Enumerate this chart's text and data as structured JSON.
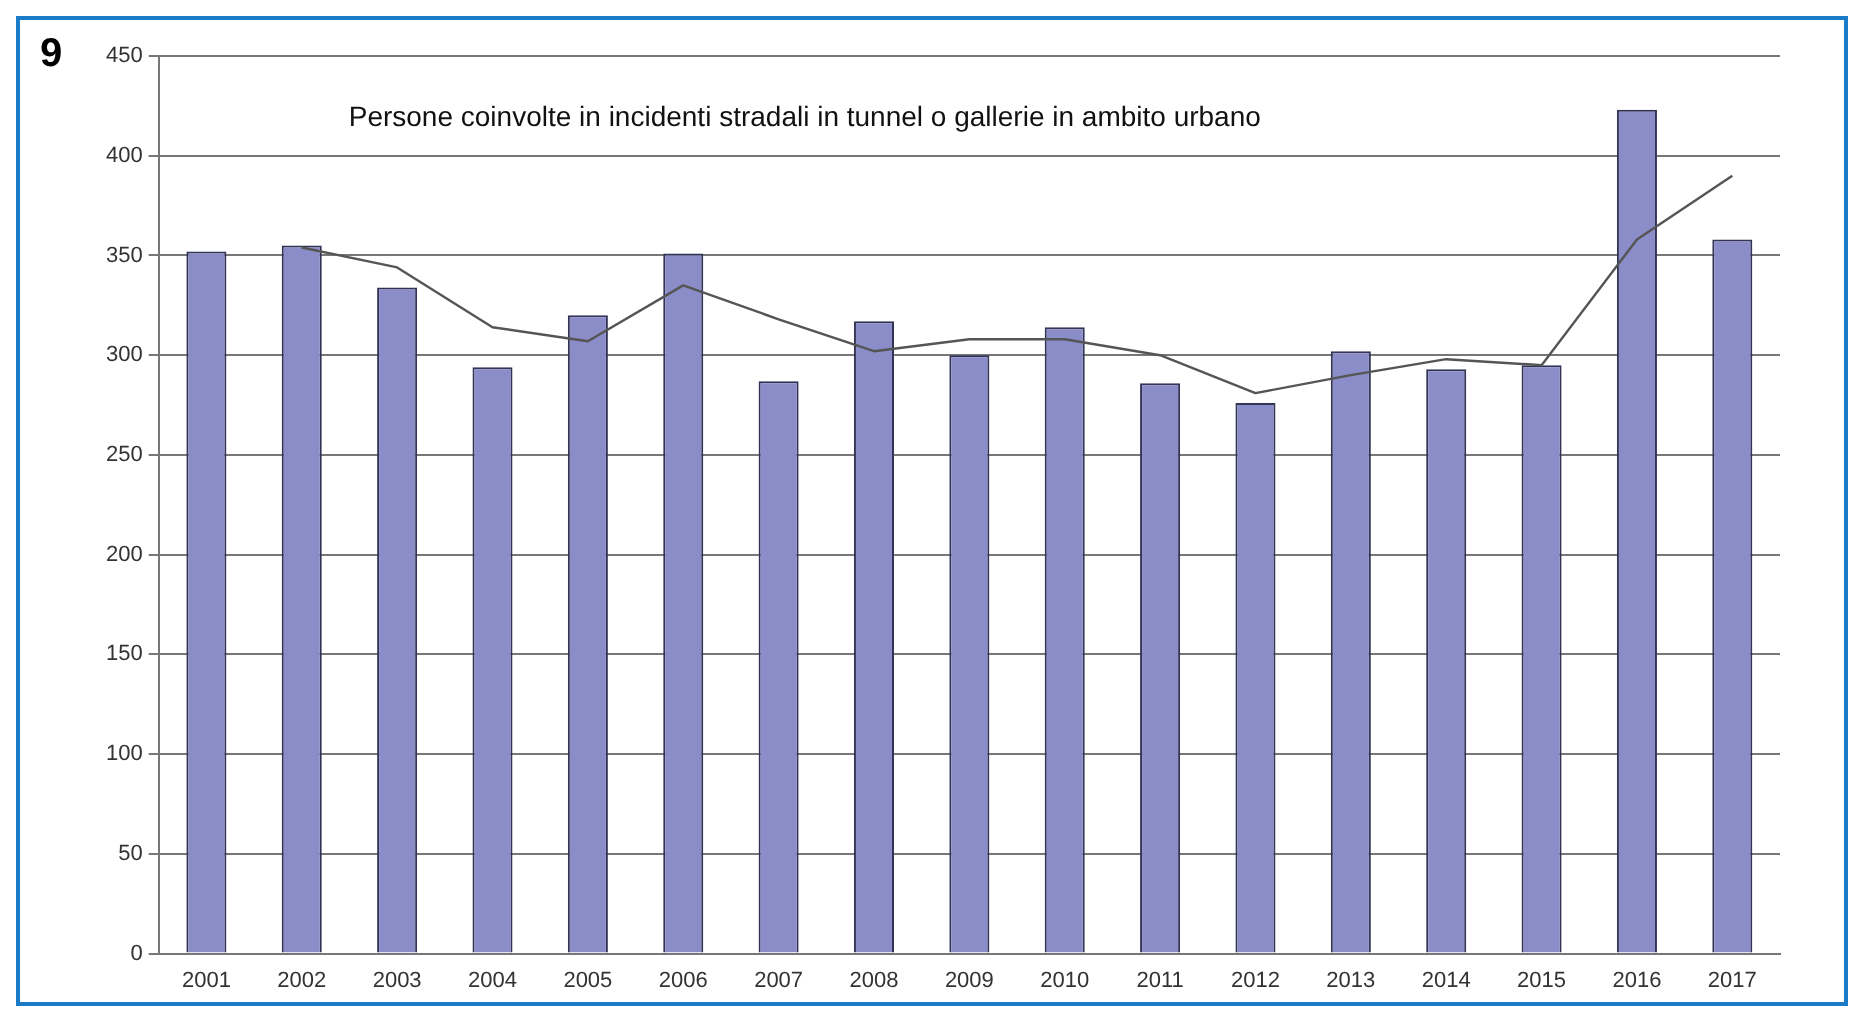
{
  "chart_data": {
    "type": "bar",
    "title": "Persone coinvolte in incidenti stradali in tunnel o gallerie in ambito urbano",
    "annotations": [
      "9"
    ],
    "categories": [
      "2001",
      "2002",
      "2003",
      "2004",
      "2005",
      "2006",
      "2007",
      "2008",
      "2009",
      "2010",
      "2011",
      "2012",
      "2013",
      "2014",
      "2015",
      "2016",
      "2017"
    ],
    "series": [
      {
        "color": "#8b8dc8",
        "values": [
          352,
          355,
          334,
          294,
          320,
          351,
          287,
          317,
          300,
          314,
          286,
          276,
          302,
          293,
          295,
          423,
          358
        ]
      },
      {
        "type": "line",
        "color": "#555555",
        "values": [
          null,
          354,
          344,
          314,
          307,
          335,
          318,
          302,
          308,
          308,
          300,
          281,
          290,
          298,
          295,
          358,
          390
        ]
      }
    ],
    "ylim": [
      0,
      450
    ],
    "yticks": [
      0,
      50,
      100,
      150,
      200,
      250,
      300,
      350,
      400,
      450
    ],
    "grid": "y",
    "legend": false,
    "marker": "none"
  }
}
